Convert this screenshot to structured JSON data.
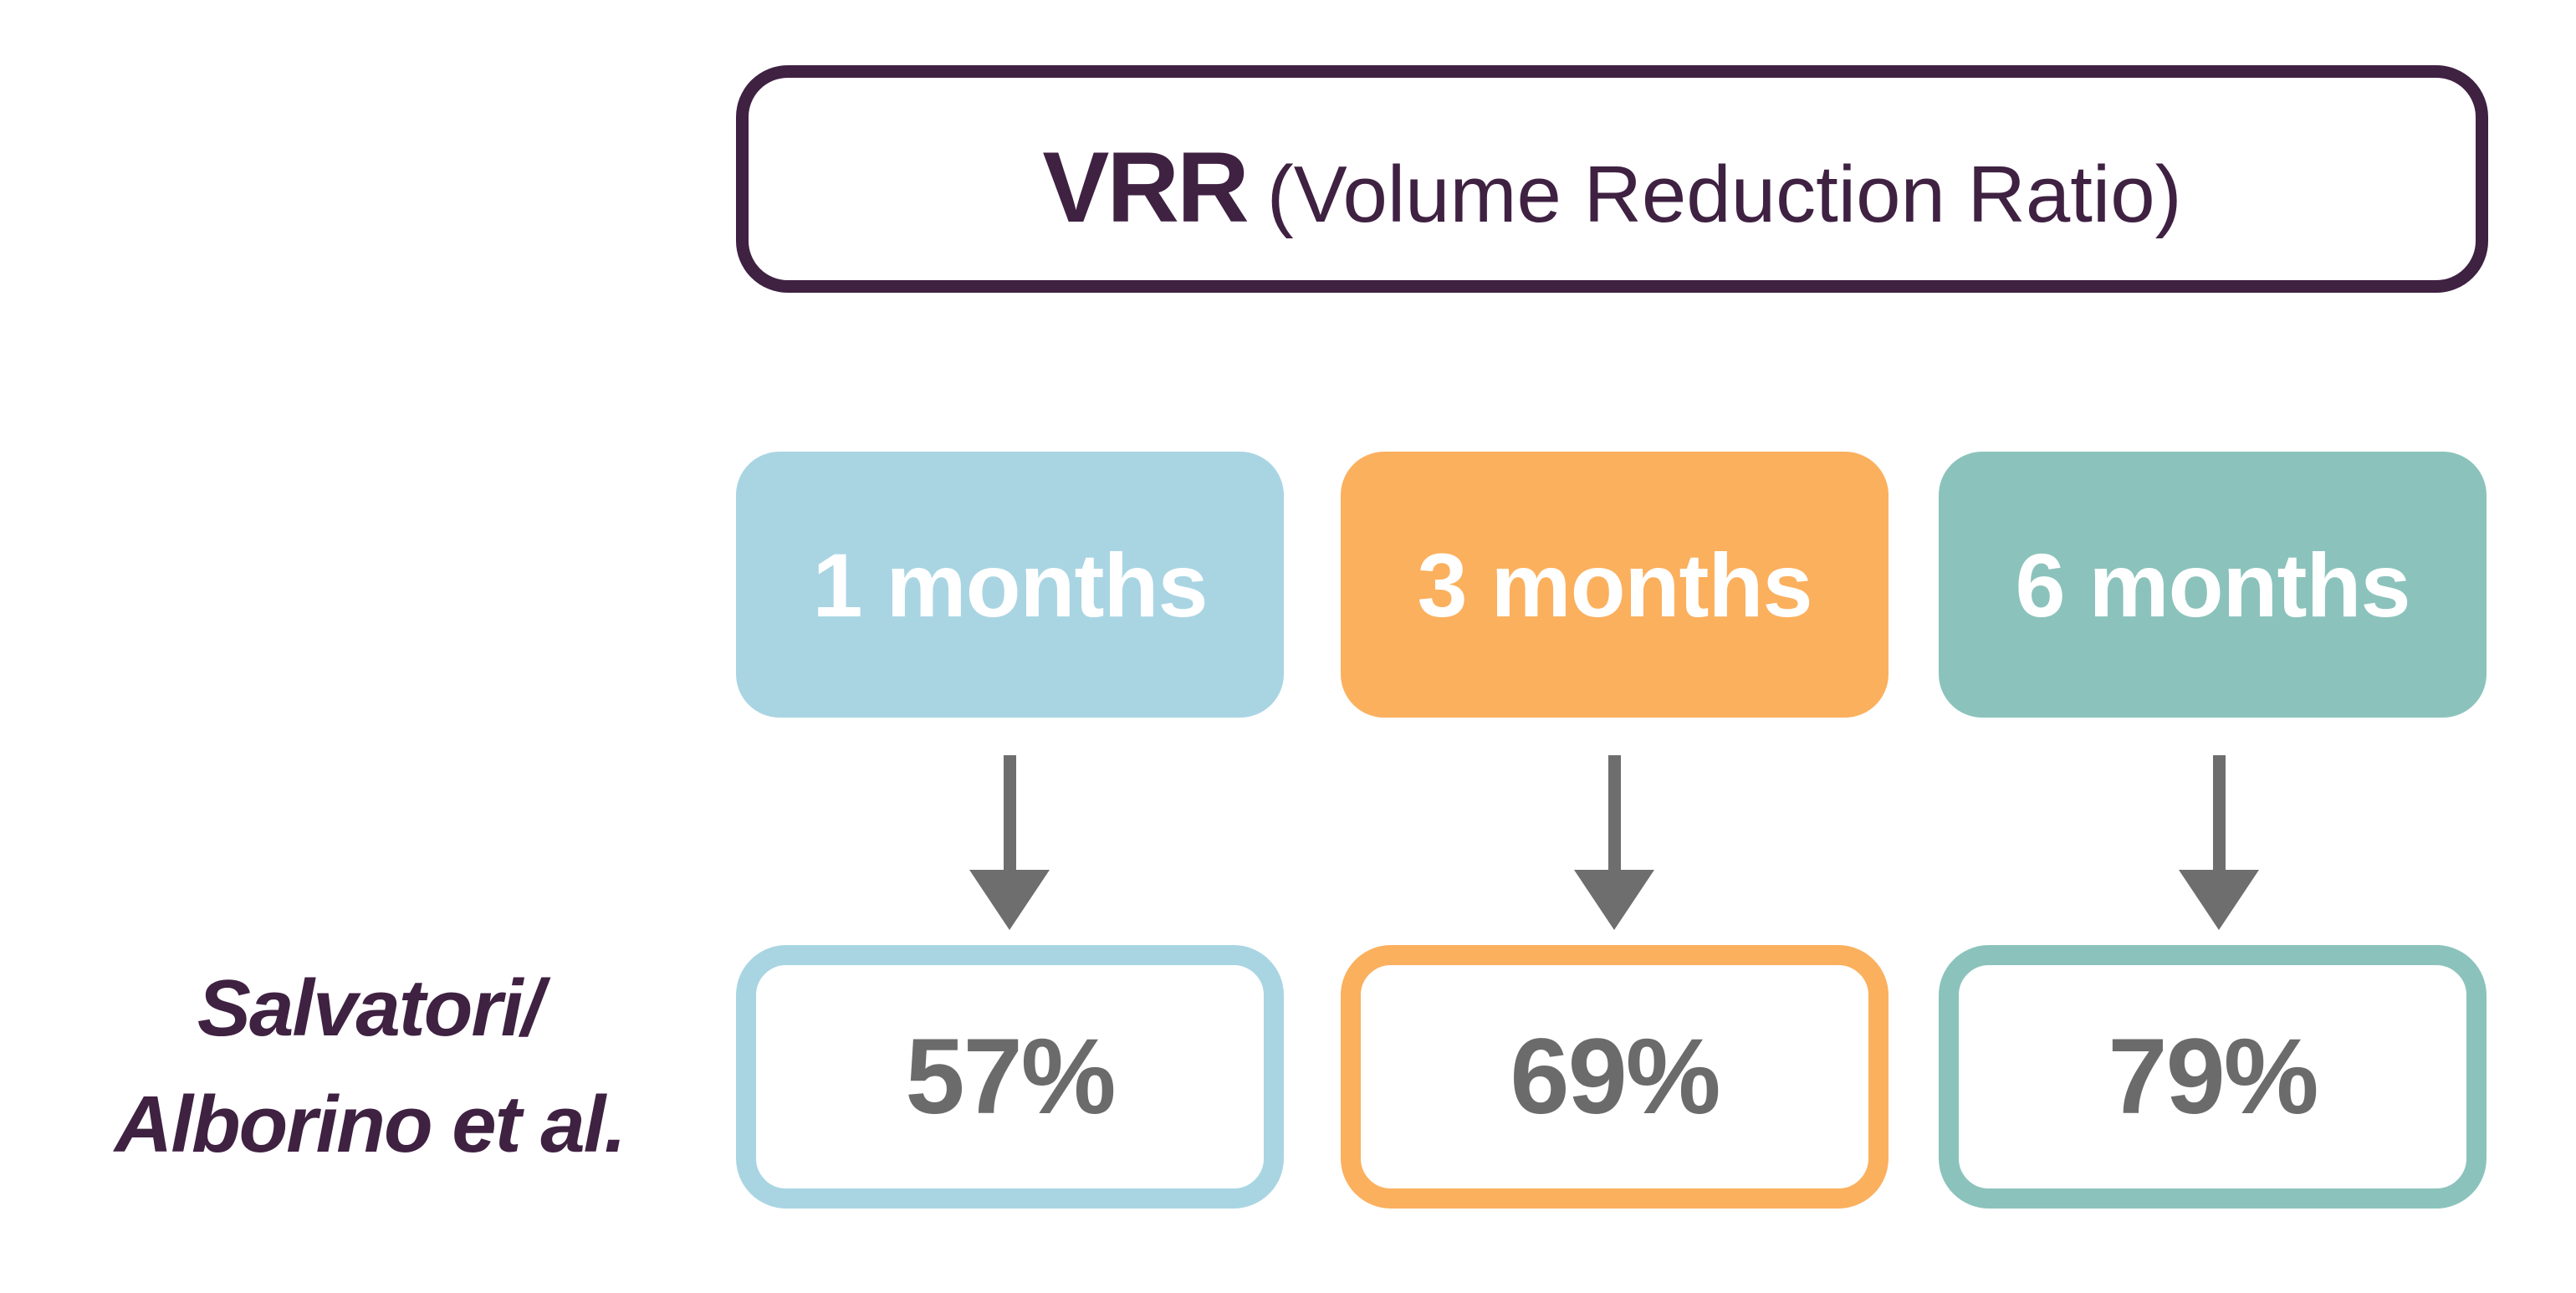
{
  "title": {
    "main": "VRR",
    "sub": "(Volume Reduction Ratio)"
  },
  "columns": [
    {
      "label": "1 months",
      "value": "57%",
      "fill_color": "#A9D5E3"
    },
    {
      "label": "3 months",
      "value": "69%",
      "fill_color": "#FBB05E"
    },
    {
      "label": "6 months",
      "value": "79%",
      "fill_color": "#8BC3BC"
    }
  ],
  "row_label": {
    "line1": "Salvatori/",
    "line2": "Alborino et al."
  },
  "colors": {
    "accent_purple": "#3F2142",
    "light_blue": "#A9D5E3",
    "orange": "#FBB05E",
    "teal": "#8BC3BC",
    "arrow_gray": "#6E6E6E",
    "value_gray": "#6B6B6B"
  },
  "chart_data": {
    "type": "table",
    "title": "VRR (Volume Reduction Ratio)",
    "categories": [
      "1 months",
      "3 months",
      "6 months"
    ],
    "series": [
      {
        "name": "Salvatori/Alborino et al.",
        "values": [
          "57%",
          "69%",
          "79%"
        ]
      }
    ]
  }
}
